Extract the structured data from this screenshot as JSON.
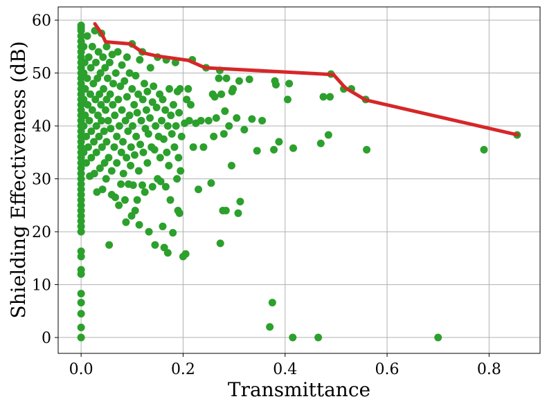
{
  "chart_data": {
    "type": "scatter",
    "title": "",
    "xlabel": "Transmittance",
    "ylabel": "Shielding Effectiveness (dB)",
    "xlim": [
      -0.045,
      0.9
    ],
    "ylim": [
      -3,
      62.5
    ],
    "xticks": [
      0.0,
      0.2,
      0.4,
      0.6,
      0.8
    ],
    "xtick_labels": [
      "0.0",
      "0.2",
      "0.4",
      "0.6",
      "0.8"
    ],
    "yticks": [
      0,
      10,
      20,
      30,
      40,
      50,
      60
    ],
    "ytick_labels": [
      "0",
      "10",
      "20",
      "30",
      "40",
      "50",
      "60"
    ],
    "grid": true,
    "colors": {
      "scatter": "#2ca02c",
      "frontier": "#d62728"
    },
    "series": [
      {
        "type": "scatter",
        "points": [
          [
            0.0,
            59
          ],
          [
            0.0,
            58.5
          ],
          [
            0.0,
            58
          ],
          [
            0.0,
            57
          ],
          [
            0.0,
            56
          ],
          [
            0.0,
            55
          ],
          [
            0.0,
            54
          ],
          [
            0.0,
            53
          ],
          [
            0.0,
            52
          ],
          [
            0.0,
            51
          ],
          [
            0.0,
            50
          ],
          [
            0.0,
            49
          ],
          [
            0.0,
            48
          ],
          [
            0.0,
            47
          ],
          [
            0.0,
            46
          ],
          [
            0.0,
            45
          ],
          [
            0.0,
            44
          ],
          [
            0.0,
            43
          ],
          [
            0.0,
            42
          ],
          [
            0.0,
            41
          ],
          [
            0.0,
            40
          ],
          [
            0.0,
            39
          ],
          [
            0.0,
            38
          ],
          [
            0.0,
            37
          ],
          [
            0.0,
            36
          ],
          [
            0.0,
            35
          ],
          [
            0.0,
            34
          ],
          [
            0.0,
            33
          ],
          [
            0.0,
            32
          ],
          [
            0.0,
            31
          ],
          [
            0.0,
            30
          ],
          [
            0.0,
            29
          ],
          [
            0.0,
            28
          ],
          [
            0.0,
            27
          ],
          [
            0.0,
            26
          ],
          [
            0.0,
            25
          ],
          [
            0.0,
            24
          ],
          [
            0.0,
            23
          ],
          [
            0.0,
            22
          ],
          [
            0.0,
            21
          ],
          [
            0.0,
            20
          ],
          [
            0.0,
            16.3
          ],
          [
            0.0,
            15.3
          ],
          [
            0.0,
            12.8
          ],
          [
            0.0,
            12
          ],
          [
            0.0,
            8.3
          ],
          [
            0.0,
            6.6
          ],
          [
            0.0,
            4.5
          ],
          [
            0.0,
            1.9
          ],
          [
            0.0,
            0
          ],
          [
            0.005,
            55
          ],
          [
            0.005,
            50
          ],
          [
            0.005,
            45
          ],
          [
            0.005,
            40
          ],
          [
            0.005,
            35
          ],
          [
            0.007,
            52
          ],
          [
            0.008,
            47
          ],
          [
            0.008,
            42
          ],
          [
            0.01,
            38
          ],
          [
            0.01,
            33
          ],
          [
            0.012,
            57
          ],
          [
            0.012,
            49
          ],
          [
            0.013,
            44
          ],
          [
            0.014,
            36
          ],
          [
            0.015,
            53
          ],
          [
            0.016,
            41
          ],
          [
            0.017,
            30.5
          ],
          [
            0.018,
            46
          ],
          [
            0.019,
            51
          ],
          [
            0.02,
            39
          ],
          [
            0.02,
            34
          ],
          [
            0.022,
            55
          ],
          [
            0.022,
            43
          ],
          [
            0.024,
            48
          ],
          [
            0.025,
            37
          ],
          [
            0.026,
            31
          ],
          [
            0.027,
            58
          ],
          [
            0.028,
            45
          ],
          [
            0.029,
            52
          ],
          [
            0.03,
            40
          ],
          [
            0.03,
            35
          ],
          [
            0.031,
            27.5
          ],
          [
            0.032,
            49
          ],
          [
            0.033,
            42
          ],
          [
            0.034,
            54
          ],
          [
            0.035,
            38
          ],
          [
            0.036,
            46
          ],
          [
            0.037,
            32
          ],
          [
            0.038,
            50
          ],
          [
            0.039,
            44
          ],
          [
            0.04,
            57.5
          ],
          [
            0.04,
            41
          ],
          [
            0.041,
            36
          ],
          [
            0.042,
            28
          ],
          [
            0.043,
            53
          ],
          [
            0.044,
            47
          ],
          [
            0.045,
            39
          ],
          [
            0.046,
            33
          ],
          [
            0.047,
            51
          ],
          [
            0.048,
            43
          ],
          [
            0.049,
            30
          ],
          [
            0.05,
            55
          ],
          [
            0.05,
            45
          ],
          [
            0.05,
            37
          ],
          [
            0.052,
            49
          ],
          [
            0.053,
            41
          ],
          [
            0.054,
            34
          ],
          [
            0.055,
            17.5
          ],
          [
            0.056,
            52
          ],
          [
            0.057,
            46
          ],
          [
            0.058,
            39.5
          ],
          [
            0.06,
            27
          ],
          [
            0.06,
            31.5
          ],
          [
            0.061,
            53.5
          ],
          [
            0.062,
            44
          ],
          [
            0.063,
            48
          ],
          [
            0.065,
            36
          ],
          [
            0.066,
            42
          ],
          [
            0.067,
            26.5
          ],
          [
            0.068,
            50
          ],
          [
            0.07,
            38
          ],
          [
            0.07,
            33
          ],
          [
            0.072,
            54
          ],
          [
            0.073,
            45
          ],
          [
            0.074,
            25
          ],
          [
            0.075,
            40
          ],
          [
            0.077,
            47.5
          ],
          [
            0.078,
            29
          ],
          [
            0.079,
            35
          ],
          [
            0.08,
            51.5
          ],
          [
            0.08,
            43
          ],
          [
            0.082,
            37
          ],
          [
            0.083,
            31
          ],
          [
            0.085,
            48.5
          ],
          [
            0.086,
            26
          ],
          [
            0.087,
            41
          ],
          [
            0.088,
            21.8
          ],
          [
            0.089,
            34
          ],
          [
            0.09,
            53
          ],
          [
            0.09,
            45.5
          ],
          [
            0.092,
            39
          ],
          [
            0.093,
            29
          ],
          [
            0.095,
            50
          ],
          [
            0.095,
            42
          ],
          [
            0.097,
            32.5
          ],
          [
            0.098,
            36
          ],
          [
            0.099,
            23
          ],
          [
            0.1,
            55.5
          ],
          [
            0.1,
            47
          ],
          [
            0.101,
            40
          ],
          [
            0.102,
            28.8
          ],
          [
            0.104,
            44
          ],
          [
            0.105,
            34.5
          ],
          [
            0.106,
            24
          ],
          [
            0.107,
            49.5
          ],
          [
            0.108,
            38
          ],
          [
            0.11,
            26
          ],
          [
            0.11,
            42.5
          ],
          [
            0.112,
            46
          ],
          [
            0.113,
            31.5
          ],
          [
            0.114,
            21.3
          ],
          [
            0.115,
            52.5
          ],
          [
            0.116,
            36.5
          ],
          [
            0.118,
            41
          ],
          [
            0.12,
            54
          ],
          [
            0.12,
            28.8
          ],
          [
            0.121,
            45
          ],
          [
            0.122,
            35
          ],
          [
            0.124,
            48
          ],
          [
            0.125,
            27.5
          ],
          [
            0.126,
            39.5
          ],
          [
            0.128,
            43
          ],
          [
            0.13,
            33
          ],
          [
            0.13,
            46.5
          ],
          [
            0.132,
            38.5
          ],
          [
            0.133,
            20
          ],
          [
            0.135,
            41.5
          ],
          [
            0.136,
            51
          ],
          [
            0.138,
            36
          ],
          [
            0.14,
            44.5
          ],
          [
            0.14,
            28.5
          ],
          [
            0.142,
            47.5
          ],
          [
            0.144,
            35.5
          ],
          [
            0.145,
            17.5
          ],
          [
            0.146,
            40
          ],
          [
            0.148,
            43.5
          ],
          [
            0.15,
            53
          ],
          [
            0.15,
            30
          ],
          [
            0.152,
            38
          ],
          [
            0.154,
            46
          ],
          [
            0.155,
            34
          ],
          [
            0.156,
            29.5
          ],
          [
            0.158,
            41
          ],
          [
            0.16,
            21
          ],
          [
            0.16,
            45
          ],
          [
            0.162,
            37.5
          ],
          [
            0.163,
            17
          ],
          [
            0.165,
            43
          ],
          [
            0.166,
            28.5
          ],
          [
            0.167,
            52.5
          ],
          [
            0.168,
            35
          ],
          [
            0.17,
            16
          ],
          [
            0.17,
            40
          ],
          [
            0.172,
            32.5
          ],
          [
            0.173,
            47
          ],
          [
            0.175,
            26
          ],
          [
            0.176,
            42
          ],
          [
            0.178,
            38.5
          ],
          [
            0.18,
            19.8
          ],
          [
            0.181,
            44
          ],
          [
            0.183,
            36
          ],
          [
            0.185,
            52
          ],
          [
            0.186,
            40
          ],
          [
            0.188,
            30
          ],
          [
            0.189,
            46.5
          ],
          [
            0.19,
            24
          ],
          [
            0.191,
            34
          ],
          [
            0.192,
            42.5
          ],
          [
            0.193,
            23.5
          ],
          [
            0.194,
            47
          ],
          [
            0.195,
            31.5
          ],
          [
            0.197,
            38
          ],
          [
            0.2,
            15.3
          ],
          [
            0.203,
            40.5
          ],
          [
            0.205,
            15.8
          ],
          [
            0.207,
            45
          ],
          [
            0.21,
            47
          ],
          [
            0.212,
            41
          ],
          [
            0.215,
            44
          ],
          [
            0.218,
            52.5
          ],
          [
            0.22,
            36
          ],
          [
            0.225,
            40.5
          ],
          [
            0.23,
            28
          ],
          [
            0.235,
            41
          ],
          [
            0.24,
            36
          ],
          [
            0.245,
            51
          ],
          [
            0.25,
            41
          ],
          [
            0.255,
            29.2
          ],
          [
            0.258,
            46
          ],
          [
            0.26,
            38
          ],
          [
            0.262,
            45.5
          ],
          [
            0.265,
            41.5
          ],
          [
            0.27,
            49
          ],
          [
            0.272,
            50.5
          ],
          [
            0.273,
            17.8
          ],
          [
            0.275,
            46
          ],
          [
            0.278,
            24
          ],
          [
            0.28,
            38.5
          ],
          [
            0.282,
            42.8
          ],
          [
            0.284,
            24
          ],
          [
            0.285,
            49
          ],
          [
            0.29,
            40
          ],
          [
            0.295,
            32.5
          ],
          [
            0.296,
            46.5
          ],
          [
            0.298,
            47
          ],
          [
            0.305,
            41.5
          ],
          [
            0.308,
            23.5
          ],
          [
            0.31,
            48.5
          ],
          [
            0.312,
            25.7
          ],
          [
            0.32,
            39.3
          ],
          [
            0.33,
            48.8
          ],
          [
            0.335,
            41.3
          ],
          [
            0.345,
            35.3
          ],
          [
            0.355,
            41
          ],
          [
            0.37,
            2
          ],
          [
            0.375,
            6.6
          ],
          [
            0.378,
            35.5
          ],
          [
            0.38,
            48.5
          ],
          [
            0.382,
            47.8
          ],
          [
            0.388,
            37
          ],
          [
            0.405,
            45
          ],
          [
            0.408,
            48
          ],
          [
            0.415,
            0
          ],
          [
            0.416,
            35.8
          ],
          [
            0.465,
            0
          ],
          [
            0.47,
            36.7
          ],
          [
            0.475,
            45.5
          ],
          [
            0.485,
            38.3
          ],
          [
            0.488,
            45.5
          ],
          [
            0.49,
            49.8
          ],
          [
            0.515,
            47
          ],
          [
            0.53,
            47
          ],
          [
            0.558,
            45
          ],
          [
            0.56,
            35.5
          ],
          [
            0.7,
            0
          ],
          [
            0.79,
            35.5
          ],
          [
            0.855,
            38.3
          ]
        ]
      },
      {
        "type": "line",
        "points": [
          [
            0.027,
            59.3
          ],
          [
            0.04,
            57.5
          ],
          [
            0.048,
            55.9
          ],
          [
            0.097,
            55.5
          ],
          [
            0.122,
            53.8
          ],
          [
            0.15,
            53.2
          ],
          [
            0.21,
            52.4
          ],
          [
            0.243,
            51.0
          ],
          [
            0.495,
            49.7
          ],
          [
            0.518,
            47.2
          ],
          [
            0.558,
            44.9
          ],
          [
            0.856,
            38.3
          ]
        ]
      }
    ]
  }
}
